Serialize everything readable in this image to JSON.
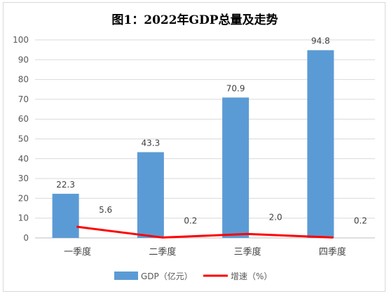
{
  "chart_data": {
    "type": "bar",
    "title": "图1：2022年GDP总量及走势",
    "categories": [
      "一季度",
      "二季度",
      "三季度",
      "四季度"
    ],
    "ylim": [
      0,
      100
    ],
    "yticks": [
      0,
      10,
      20,
      30,
      40,
      50,
      60,
      70,
      80,
      90,
      100
    ],
    "grid": true,
    "legend_position": "bottom",
    "series": [
      {
        "name": "GDP（亿元）",
        "type": "bar",
        "color": "#5b9bd5",
        "values": [
          22.3,
          43.3,
          70.9,
          94.8
        ],
        "labels": [
          "22.3",
          "43.3",
          "70.9",
          "94.8"
        ]
      },
      {
        "name": "增速（%）",
        "type": "line",
        "color": "#ff0000",
        "values": [
          5.6,
          0.2,
          2.0,
          0.2
        ],
        "labels": [
          "5.6",
          "0.2",
          "2.0",
          "0.2"
        ]
      }
    ]
  }
}
